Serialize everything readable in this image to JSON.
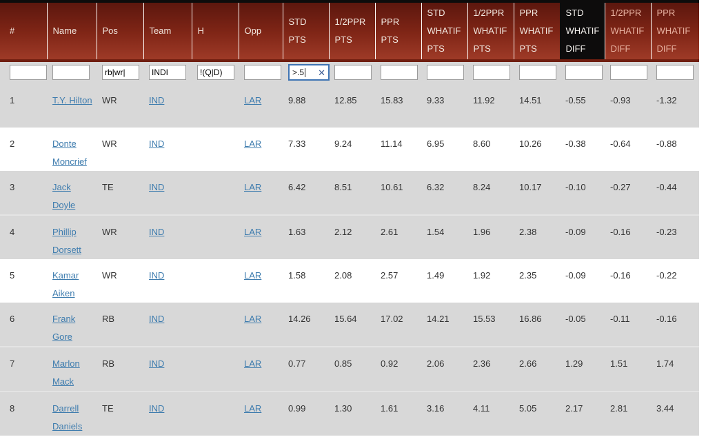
{
  "table": {
    "columns": [
      {
        "label": "#",
        "filter": ""
      },
      {
        "label": "Name",
        "filter": ""
      },
      {
        "label": "Pos",
        "filter": "rb|wr|"
      },
      {
        "label": "Team",
        "filter": "INDI"
      },
      {
        "label": "H",
        "filter": "!(Q|D)"
      },
      {
        "label": "Opp",
        "filter": ""
      },
      {
        "label": "STD PTS",
        "filter": ">.5",
        "filter_focused": true
      },
      {
        "label": "1/2PPR PTS",
        "filter": ""
      },
      {
        "label": "PPR PTS",
        "filter": ""
      },
      {
        "label": "STD WHATIF PTS",
        "filter": ""
      },
      {
        "label": "1/2PPR WHATIF PTS",
        "filter": ""
      },
      {
        "label": "PPR WHATIF PTS",
        "filter": ""
      },
      {
        "label": "STD WHATIF DIFF",
        "filter": "",
        "sorted": true
      },
      {
        "label": "1/2PPR WHATIF DIFF",
        "filter": "",
        "accent": "salmon"
      },
      {
        "label": "PPR WHATIF DIFF",
        "filter": "",
        "accent": "salmon"
      }
    ],
    "rows": [
      {
        "num": "1",
        "name": "T.Y. Hilton",
        "pos": "WR",
        "team": "IND",
        "h": "",
        "opp": "LAR",
        "shade": "gray",
        "values": [
          "9.88",
          "12.85",
          "15.83",
          "9.33",
          "11.92",
          "14.51",
          "-0.55",
          "-0.93",
          "-1.32"
        ]
      },
      {
        "num": "2",
        "name": "Donte Moncrief",
        "pos": "WR",
        "team": "IND",
        "h": "",
        "opp": "LAR",
        "shade": "white",
        "values": [
          "7.33",
          "9.24",
          "11.14",
          "6.95",
          "8.60",
          "10.26",
          "-0.38",
          "-0.64",
          "-0.88"
        ]
      },
      {
        "num": "3",
        "name": "Jack Doyle",
        "pos": "TE",
        "team": "IND",
        "h": "",
        "opp": "LAR",
        "shade": "gray",
        "values": [
          "6.42",
          "8.51",
          "10.61",
          "6.32",
          "8.24",
          "10.17",
          "-0.10",
          "-0.27",
          "-0.44"
        ]
      },
      {
        "num": "4",
        "name": "Phillip Dorsett",
        "pos": "WR",
        "team": "IND",
        "h": "",
        "opp": "LAR",
        "shade": "gray",
        "values": [
          "1.63",
          "2.12",
          "2.61",
          "1.54",
          "1.96",
          "2.38",
          "-0.09",
          "-0.16",
          "-0.23"
        ]
      },
      {
        "num": "5",
        "name": "Kamar Aiken",
        "pos": "WR",
        "team": "IND",
        "h": "",
        "opp": "LAR",
        "shade": "white",
        "values": [
          "1.58",
          "2.08",
          "2.57",
          "1.49",
          "1.92",
          "2.35",
          "-0.09",
          "-0.16",
          "-0.22"
        ]
      },
      {
        "num": "6",
        "name": "Frank Gore",
        "pos": "RB",
        "team": "IND",
        "h": "",
        "opp": "LAR",
        "shade": "gray",
        "values": [
          "14.26",
          "15.64",
          "17.02",
          "14.21",
          "15.53",
          "16.86",
          "-0.05",
          "-0.11",
          "-0.16"
        ]
      },
      {
        "num": "7",
        "name": "Marlon Mack",
        "pos": "RB",
        "team": "IND",
        "h": "",
        "opp": "LAR",
        "shade": "gray",
        "values": [
          "0.77",
          "0.85",
          "0.92",
          "2.06",
          "2.36",
          "2.66",
          "1.29",
          "1.51",
          "1.74"
        ]
      },
      {
        "num": "8",
        "name": "Darrell Daniels",
        "pos": "TE",
        "team": "IND",
        "h": "",
        "opp": "LAR",
        "shade": "gray",
        "values": [
          "0.99",
          "1.30",
          "1.61",
          "3.16",
          "4.11",
          "5.05",
          "2.17",
          "2.81",
          "3.44"
        ]
      }
    ]
  },
  "icons": {
    "clear_label": "✕"
  },
  "colors": {
    "header_red_top": "#5c170e",
    "header_red_bottom": "#9e3a27",
    "header_border_bottom": "#701e10",
    "sorted_column_black": "#0d0c0c",
    "header_text": "#f2e8e0",
    "header_text_salmon": "#e8b1a0",
    "row_gray": "#d8d8d8",
    "row_white": "#ffffff",
    "link_blue": "#3e7cae",
    "focus_border_blue": "#3f74b3",
    "clear_icon_blue": "#3d5d95",
    "body_text": "#333333"
  }
}
